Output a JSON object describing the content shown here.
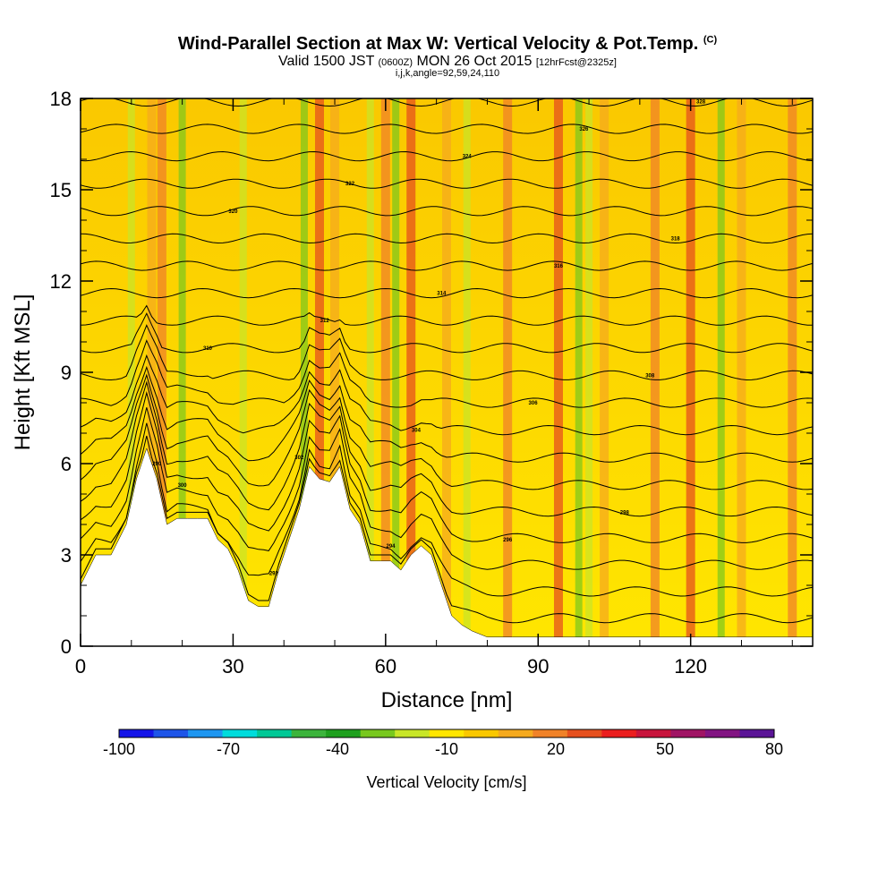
{
  "header": {
    "title": "Wind-Parallel Section at Max W: Vertical Velocity & Pot.Temp.",
    "copyright": "(C)",
    "valid_prefix": "Valid 1500 JST",
    "valid_utc": "(0600Z)",
    "valid_date": "MON 26 Oct 2015",
    "forecast": "[12hrFcst@2325z]",
    "indices": "i,j,k,angle=92,59,24,110"
  },
  "chart_data": {
    "type": "heatmap",
    "xlabel": "Distance [nm]",
    "ylabel": "Height [Kft MSL]",
    "xlim": [
      0,
      144
    ],
    "ylim": [
      0,
      18
    ],
    "x_ticks": [
      "0",
      "30",
      "60",
      "90",
      "120"
    ],
    "y_ticks": [
      "0",
      "3",
      "6",
      "9",
      "12",
      "15",
      "18"
    ],
    "terrain_profile": {
      "x": [
        0,
        3,
        6,
        9,
        11,
        13,
        15,
        17,
        19,
        21,
        23,
        25,
        27,
        29,
        31,
        33,
        35,
        37,
        39,
        41,
        43,
        45,
        47,
        49,
        51,
        53,
        55,
        57,
        59,
        61,
        63,
        65,
        67,
        69,
        71,
        73,
        75,
        77,
        80,
        85,
        144
      ],
      "height": [
        2.0,
        3.0,
        3.0,
        4.0,
        5.5,
        6.5,
        5.5,
        4.0,
        4.2,
        4.2,
        4.2,
        4.2,
        3.5,
        3.2,
        2.5,
        1.5,
        1.3,
        1.3,
        2.5,
        3.5,
        4.5,
        5.9,
        5.5,
        5.4,
        5.9,
        4.5,
        4.0,
        2.8,
        2.8,
        2.8,
        2.5,
        3.0,
        3.3,
        3.0,
        2.0,
        1.0,
        0.7,
        0.5,
        0.3,
        0.3,
        0.3
      ]
    },
    "updraft_columns_x": [
      14,
      16,
      47,
      50,
      60,
      65,
      72,
      84,
      94,
      103,
      113,
      120,
      130,
      140
    ],
    "downdraft_columns_x": [
      10,
      20,
      32,
      44,
      57,
      62,
      76,
      98,
      100,
      126
    ],
    "isentrope_labels": [
      "290",
      "292",
      "294",
      "296",
      "298",
      "300",
      "302",
      "304",
      "306",
      "308",
      "310",
      "312",
      "314",
      "316",
      "318",
      "320",
      "322",
      "324",
      "326",
      "328"
    ],
    "colorbar": {
      "title": "Vertical Velocity [cm/s]",
      "tick_labels": [
        "-100",
        "-70",
        "-40",
        "-10",
        "20",
        "50",
        "80"
      ],
      "colors": [
        "#1414e8",
        "#1e55e8",
        "#1e96f0",
        "#00dcdc",
        "#00c896",
        "#3cb43c",
        "#1ea01e",
        "#78c81e",
        "#c8e628",
        "#ffe600",
        "#fac800",
        "#f5aa1e",
        "#f08228",
        "#e6501e",
        "#eb1e1e",
        "#c8143c",
        "#a01464",
        "#821482",
        "#5a1496"
      ]
    }
  }
}
